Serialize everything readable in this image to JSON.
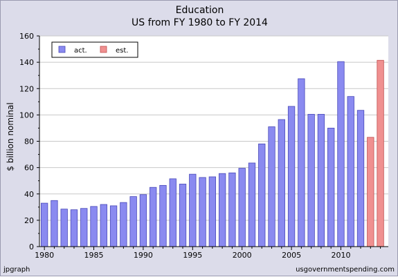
{
  "footer": {
    "left": "jpgraph",
    "right": "usgovernmentspending.com"
  },
  "colors": {
    "background": "#dcdcea",
    "plot_bg": "#ffffff",
    "actual": "#8a8af0",
    "estimate": "#f09090",
    "grid": "#c8c8c8"
  },
  "chart_data": {
    "type": "bar",
    "title": "Education",
    "subtitle": "US from FY 1980 to FY 2014",
    "xlabel": "",
    "ylabel": "$ billion nominal",
    "ylim": [
      0,
      160
    ],
    "yticks": [
      0,
      20,
      40,
      60,
      80,
      100,
      120,
      140,
      160
    ],
    "xticks": [
      1980,
      1985,
      1990,
      1995,
      2000,
      2005,
      2010
    ],
    "grid": true,
    "legend": {
      "placement": "top-left",
      "entries": [
        "act.",
        "est."
      ]
    },
    "x": [
      1980,
      1981,
      1982,
      1983,
      1984,
      1985,
      1986,
      1987,
      1988,
      1989,
      1990,
      1991,
      1992,
      1993,
      1994,
      1995,
      1996,
      1997,
      1998,
      1999,
      2000,
      2001,
      2002,
      2003,
      2004,
      2005,
      2006,
      2007,
      2008,
      2009,
      2010,
      2011,
      2012,
      2013,
      2014
    ],
    "series": [
      {
        "name": "act.",
        "values": [
          33,
          35,
          28.5,
          28,
          29,
          30.5,
          32,
          31,
          33.5,
          38,
          39.5,
          45,
          46.5,
          51.5,
          47.5,
          55,
          52.5,
          53,
          55.5,
          56,
          59.5,
          63.5,
          78,
          91,
          96.5,
          106.5,
          127.5,
          100.5,
          100.5,
          90,
          140.5,
          114,
          103.5,
          null,
          null
        ]
      },
      {
        "name": "est.",
        "values": [
          null,
          null,
          null,
          null,
          null,
          null,
          null,
          null,
          null,
          null,
          null,
          null,
          null,
          null,
          null,
          null,
          null,
          null,
          null,
          null,
          null,
          null,
          null,
          null,
          null,
          null,
          null,
          null,
          null,
          null,
          null,
          null,
          null,
          83,
          141.5
        ]
      }
    ]
  }
}
